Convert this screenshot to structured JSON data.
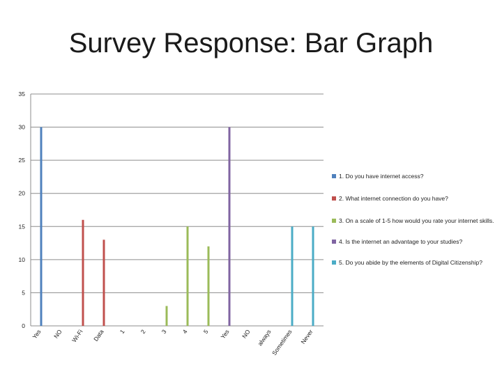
{
  "slide": {
    "title": "Survey Response: Bar Graph"
  },
  "chart_data": {
    "type": "bar",
    "title": "",
    "xlabel": "",
    "ylabel": "",
    "ylim": [
      0,
      35
    ],
    "yticks": [
      0,
      5,
      10,
      15,
      20,
      25,
      30,
      35
    ],
    "grid": true,
    "legend_position": "right",
    "categories": [
      "Yes",
      "NO",
      "Wi-Fi",
      "Data",
      "1",
      "2",
      "3",
      "4",
      "5",
      "Yes",
      "NO",
      "always",
      "Sometimes",
      "Never"
    ],
    "series": [
      {
        "name": "1. Do you have internet access?",
        "color": "#4F81BD",
        "values": [
          30,
          0,
          null,
          null,
          null,
          null,
          null,
          null,
          null,
          null,
          null,
          null,
          null,
          null
        ]
      },
      {
        "name": "2. What internet connection do you have?",
        "color": "#C0504D",
        "values": [
          null,
          null,
          16,
          13,
          null,
          null,
          null,
          null,
          null,
          null,
          null,
          null,
          null,
          null
        ]
      },
      {
        "name": "3. On a scale of 1-5 how would you rate your internet skills.",
        "color": "#9BBB59",
        "values": [
          null,
          null,
          null,
          null,
          0,
          0,
          3,
          15,
          12,
          null,
          null,
          null,
          null,
          null
        ]
      },
      {
        "name": "4. Is the internet an advantage to your studies?",
        "color": "#8064A2",
        "values": [
          null,
          null,
          null,
          null,
          null,
          null,
          null,
          null,
          null,
          30,
          0,
          null,
          null,
          null
        ]
      },
      {
        "name": "5. Do you abide by the elements of Digital Citizenship?",
        "color": "#4BACC6",
        "values": [
          null,
          null,
          null,
          null,
          null,
          null,
          null,
          null,
          null,
          null,
          null,
          0,
          15,
          15
        ]
      }
    ]
  }
}
